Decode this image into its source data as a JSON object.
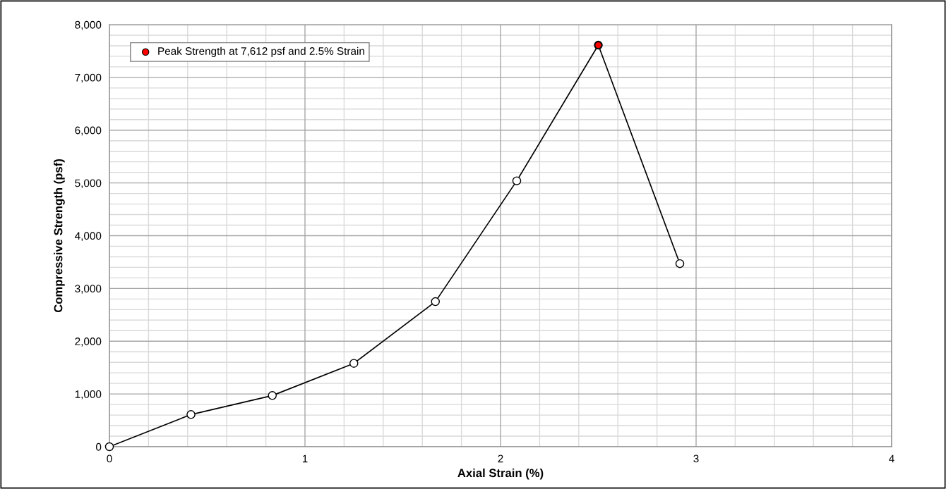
{
  "chart_data": {
    "type": "line",
    "xlabel": "Axial Strain (%)",
    "ylabel": "Compressive Strength (psf)",
    "series": [
      {
        "color": "#000000",
        "marker": "circle",
        "x": [
          0,
          0.417,
          0.833,
          1.25,
          1.667,
          2.083,
          2.5,
          2.917
        ],
        "values": [
          0,
          610,
          970,
          1580,
          2750,
          5040,
          7612,
          3470
        ]
      },
      {
        "type": "scatter",
        "name": "Peak Strength at 7,612 psf and 2.5% Strain",
        "color": "#ff0000",
        "marker": "circle",
        "x": [
          2.5
        ],
        "values": [
          7612
        ]
      }
    ],
    "xlim": [
      0,
      4
    ],
    "xticks": [
      0,
      1,
      2,
      3,
      4
    ],
    "ylim": [
      0,
      8000
    ],
    "yticks": [
      {
        "value": 0,
        "label": "0"
      },
      {
        "value": 1000,
        "label": "1,000"
      },
      {
        "value": 2000,
        "label": "2,000"
      },
      {
        "value": 3000,
        "label": "3,000"
      },
      {
        "value": 4000,
        "label": "4,000"
      },
      {
        "value": 5000,
        "label": "5,000"
      },
      {
        "value": 6000,
        "label": "6,000"
      },
      {
        "value": 7000,
        "label": "7,000"
      },
      {
        "value": 8000,
        "label": "8,000"
      }
    ],
    "grid": true,
    "legend": "top left"
  }
}
